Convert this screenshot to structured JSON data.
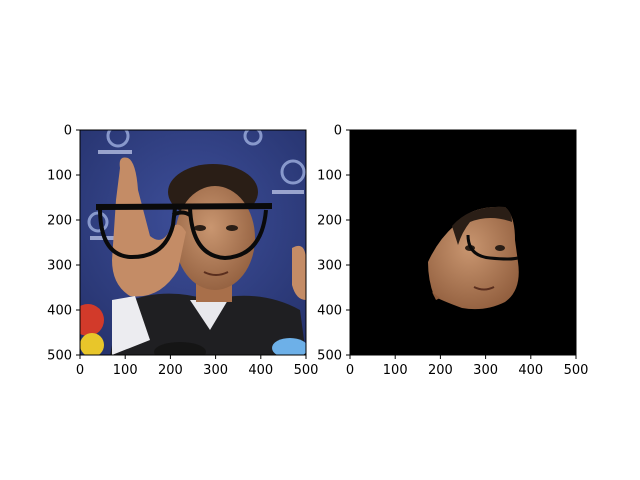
{
  "figure": {
    "panels": [
      {
        "id": "left",
        "content": "face-with-glasses-overlay",
        "x_ticks": [
          "0",
          "100",
          "200",
          "300",
          "400",
          "500"
        ],
        "y_ticks": [
          "0",
          "100",
          "200",
          "300",
          "400",
          "500"
        ]
      },
      {
        "id": "right",
        "content": "segmented-face-on-black",
        "x_ticks": [
          "0",
          "100",
          "200",
          "300",
          "400",
          "500"
        ],
        "y_ticks": [
          "0",
          "100",
          "200",
          "300",
          "400",
          "500"
        ]
      }
    ]
  },
  "colors": {
    "background": "#ffffff",
    "backdrop_blue": "#2f3f84",
    "skin": "#b37b55",
    "hair": "#2a1e16",
    "suit": "#1f1f22",
    "shirt": "#e8e8ec",
    "glasses": "#0a0a0a",
    "mask_background": "#000000"
  }
}
